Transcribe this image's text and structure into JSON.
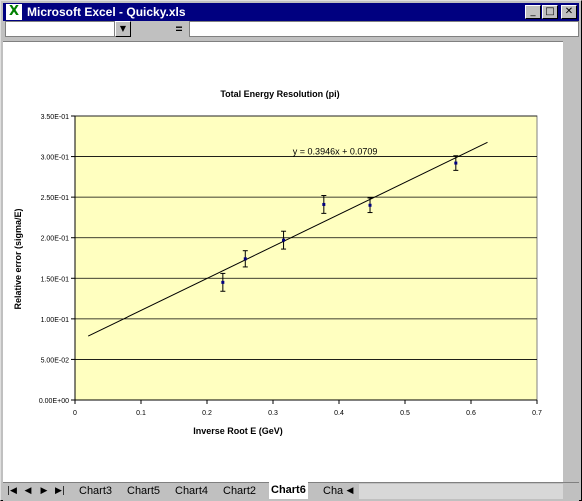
{
  "window": {
    "title": "Microsoft Excel - Quicky.xls",
    "app_icon": "excel-icon",
    "controls": [
      "minimize-icon",
      "maximize-icon",
      "close-icon"
    ]
  },
  "formula_bar": {
    "namebox_value": "",
    "fx_symbol": "=",
    "formula_value": ""
  },
  "sheet_tabs": {
    "tabs": [
      "Chart3",
      "Chart5",
      "Chart4",
      "Chart2",
      "Chart6",
      "Cha"
    ],
    "active": "Chart6",
    "nav_icons": [
      "first-sheet-icon",
      "prev-sheet-icon",
      "next-sheet-icon",
      "last-sheet-icon"
    ]
  },
  "chart_data": {
    "type": "scatter",
    "title": "Total Energy Resolution (pi)",
    "xlabel": "Inverse Root E (GeV)",
    "ylabel": "Relative error (sigma/E)",
    "xlim": [
      0,
      0.7
    ],
    "ylim": [
      0,
      0.35
    ],
    "x_ticks": [
      "0",
      "0.1",
      "0.2",
      "0.3",
      "0.4",
      "0.5",
      "0.6",
      "0.7"
    ],
    "y_ticks": [
      "0.00E+00",
      "5.00E-02",
      "1.00E-01",
      "1.50E-01",
      "2.00E-01",
      "2.50E-01",
      "3.00E-01",
      "3.50E-01"
    ],
    "grid": "horizontal",
    "background_color": "#ffffc0",
    "series": [
      {
        "x": [
          0.224,
          0.258,
          0.316,
          0.377,
          0.447,
          0.577
        ],
        "y": [
          0.145,
          0.174,
          0.197,
          0.241,
          0.24,
          0.292
        ],
        "err": [
          0.011,
          0.01,
          0.011,
          0.011,
          0.009,
          0.009
        ]
      }
    ],
    "trendline": {
      "slope": 0.3946,
      "intercept": 0.0709,
      "x_range": [
        0.02,
        0.625
      ],
      "equation": "y = 0.3946x + 0.0709"
    }
  }
}
